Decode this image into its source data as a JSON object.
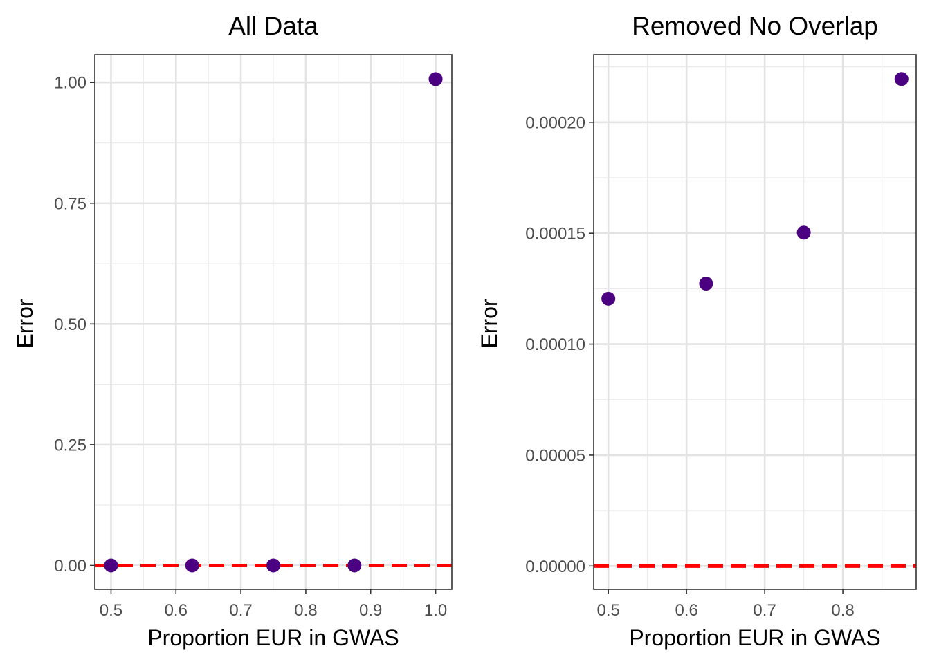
{
  "chart_data": [
    {
      "type": "scatter",
      "title": "All Data",
      "xlabel": "Proportion EUR in GWAS",
      "ylabel": "Error",
      "xlim": [
        0.475,
        1.025
      ],
      "ylim": [
        -0.0495,
        1.0576
      ],
      "x_major_ticks": [
        0.5,
        0.6,
        0.7,
        0.8,
        0.9,
        1.0
      ],
      "x_tick_labels": [
        "0.5",
        "0.6",
        "0.7",
        "0.8",
        "0.9",
        "1.0"
      ],
      "x_minor_ticks": [
        0.55,
        0.65,
        0.75,
        0.85,
        0.95
      ],
      "y_major_ticks": [
        0,
        0.25,
        0.5,
        0.75,
        1.0
      ],
      "y_tick_labels": [
        "0.00",
        "0.25",
        "0.50",
        "0.75",
        "1.00"
      ],
      "y_minor_ticks": [
        0.125,
        0.375,
        0.625,
        0.875
      ],
      "grid": true,
      "reference_line": {
        "y": 0,
        "color": "#ff0000",
        "style": "dashed"
      },
      "point_color": "#4b0082",
      "series": [
        {
          "x": [
            0.5,
            0.625,
            0.75,
            0.875,
            1.0
          ],
          "y": [
            0.0,
            0.0,
            0.0,
            0.0,
            1.007
          ]
        }
      ]
    },
    {
      "type": "scatter",
      "title": "Removed No Overlap",
      "xlabel": "Proportion EUR in GWAS",
      "ylabel": "Error",
      "xlim": [
        0.48125,
        0.89375
      ],
      "ylim": [
        -1.05e-05,
        0.0002305
      ],
      "x_major_ticks": [
        0.5,
        0.6,
        0.7,
        0.8
      ],
      "x_tick_labels": [
        "0.5",
        "0.6",
        "0.7",
        "0.8"
      ],
      "x_minor_ticks": [
        0.55,
        0.65,
        0.75,
        0.85
      ],
      "y_major_ticks": [
        0,
        5e-05,
        0.0001,
        0.00015,
        0.0002
      ],
      "y_tick_labels": [
        "0.00000",
        "0.00005",
        "0.00010",
        "0.00015",
        "0.00020"
      ],
      "y_minor_ticks": [
        2.5e-05,
        7.5e-05,
        0.000125,
        0.000175,
        0.000225
      ],
      "grid": true,
      "reference_line": {
        "y": 0,
        "color": "#ff0000",
        "style": "dashed"
      },
      "point_color": "#4b0082",
      "series": [
        {
          "x": [
            0.5,
            0.625,
            0.75,
            0.875
          ],
          "y": [
            0.0001205,
            0.0001273,
            0.0001503,
            0.0002195
          ]
        }
      ]
    }
  ]
}
